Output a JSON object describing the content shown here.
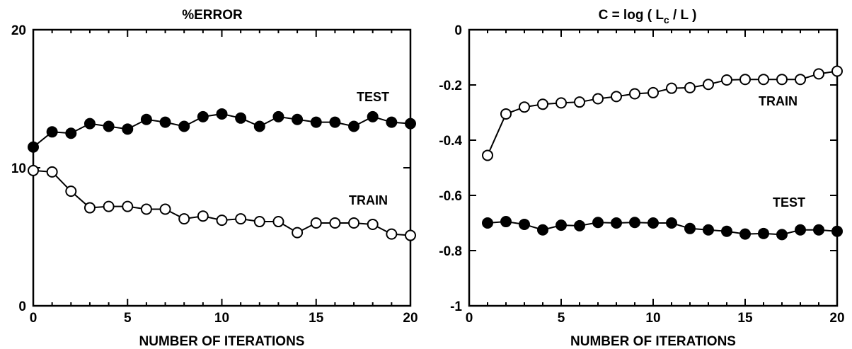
{
  "chart_data": [
    {
      "type": "line",
      "title": "%ERROR",
      "xlabel": "NUMBER OF ITERATIONS",
      "ylabel": "",
      "xlim": [
        0,
        20
      ],
      "ylim": [
        0,
        20
      ],
      "x_ticks": [
        0,
        5,
        10,
        15,
        20
      ],
      "y_ticks": [
        0,
        10,
        20
      ],
      "x_tick_labels": [
        "0",
        "5",
        "10",
        "15",
        "20"
      ],
      "y_tick_labels": [
        "0",
        "10",
        "20"
      ],
      "grid": false,
      "series": [
        {
          "name": "TEST",
          "marker": "filled",
          "x": [
            0,
            1,
            2,
            3,
            4,
            5,
            6,
            7,
            8,
            9,
            10,
            11,
            12,
            13,
            14,
            15,
            16,
            17,
            18,
            19,
            20
          ],
          "values": [
            11.5,
            12.6,
            12.5,
            13.2,
            13.0,
            12.8,
            13.5,
            13.3,
            13.0,
            13.7,
            13.9,
            13.6,
            13.0,
            13.7,
            13.5,
            13.3,
            13.3,
            13.0,
            13.7,
            13.3,
            13.2
          ]
        },
        {
          "name": "TRAIN",
          "marker": "open",
          "x": [
            0,
            1,
            2,
            3,
            4,
            5,
            6,
            7,
            8,
            9,
            10,
            11,
            12,
            13,
            14,
            15,
            16,
            17,
            18,
            19,
            20
          ],
          "values": [
            9.8,
            9.7,
            8.3,
            7.1,
            7.2,
            7.2,
            7.0,
            7.0,
            6.3,
            6.5,
            6.2,
            6.3,
            6.1,
            6.1,
            5.3,
            6.0,
            6.0,
            6.0,
            5.9,
            5.2,
            5.1
          ]
        }
      ]
    },
    {
      "type": "line",
      "title": "C = log ( L_c / L )",
      "title_main": "C = log ( L",
      "title_sub": "c",
      "title_end": " / L )",
      "xlabel": "NUMBER OF ITERATIONS",
      "ylabel": "",
      "xlim": [
        0,
        20
      ],
      "ylim": [
        -1,
        0
      ],
      "x_ticks": [
        0,
        5,
        10,
        15,
        20
      ],
      "y_ticks": [
        0,
        -0.2,
        -0.4,
        -0.6,
        -0.8,
        -1
      ],
      "x_tick_labels": [
        "0",
        "5",
        "10",
        "15",
        "20"
      ],
      "y_tick_labels": [
        "0",
        "-0.2",
        "-0.4",
        "-0.6",
        "-0.8",
        "-1"
      ],
      "grid": false,
      "series": [
        {
          "name": "TRAIN",
          "marker": "open",
          "x": [
            1,
            2,
            3,
            4,
            5,
            6,
            7,
            8,
            9,
            10,
            11,
            12,
            13,
            14,
            15,
            16,
            17,
            18,
            19,
            20
          ],
          "values": [
            -0.455,
            -0.305,
            -0.28,
            -0.27,
            -0.265,
            -0.262,
            -0.25,
            -0.242,
            -0.232,
            -0.228,
            -0.212,
            -0.21,
            -0.198,
            -0.182,
            -0.18,
            -0.18,
            -0.18,
            -0.18,
            -0.16,
            -0.15
          ]
        },
        {
          "name": "TEST",
          "marker": "filled",
          "x": [
            1,
            2,
            3,
            4,
            5,
            6,
            7,
            8,
            9,
            10,
            11,
            12,
            13,
            14,
            15,
            16,
            17,
            18,
            19,
            20
          ],
          "values": [
            -0.7,
            -0.695,
            -0.705,
            -0.725,
            -0.708,
            -0.71,
            -0.698,
            -0.7,
            -0.698,
            -0.7,
            -0.7,
            -0.72,
            -0.725,
            -0.73,
            -0.74,
            -0.738,
            -0.742,
            -0.725,
            -0.725,
            -0.73
          ]
        }
      ]
    }
  ]
}
